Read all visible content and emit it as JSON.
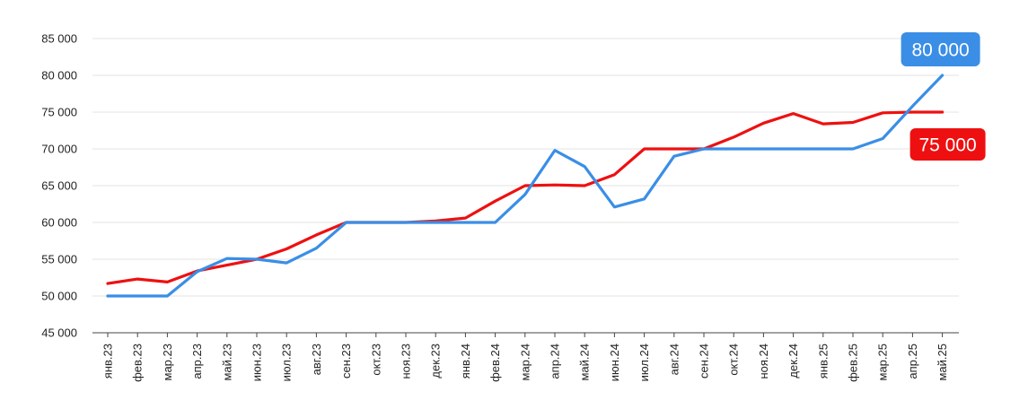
{
  "chart_data": {
    "type": "line",
    "title": "",
    "xlabel": "",
    "ylabel": "",
    "ylim": [
      45000,
      85000
    ],
    "yticks": [
      45000,
      50000,
      55000,
      60000,
      65000,
      70000,
      75000,
      80000,
      85000
    ],
    "ytick_labels": [
      "45 000",
      "50 000",
      "55 000",
      "60 000",
      "65 000",
      "70 000",
      "75 000",
      "80 000",
      "85 000"
    ],
    "grid": true,
    "legend": "none",
    "categories": [
      "янв.23",
      "фев.23",
      "мар.23",
      "апр.23",
      "май.23",
      "июн.23",
      "июл.23",
      "авг.23",
      "сен.23",
      "окт.23",
      "ноя.23",
      "дек.23",
      "янв.24",
      "фев.24",
      "мар.24",
      "апр.24",
      "май.24",
      "июн.24",
      "июл.24",
      "авг.24",
      "сен.24",
      "окт.24",
      "ноя.24",
      "дек.24",
      "янв.25",
      "фев.25",
      "мар.25",
      "апр.25",
      "май.25"
    ],
    "series": [
      {
        "color": "#ee1010",
        "values": [
          51700,
          52300,
          51900,
          53400,
          54200,
          55000,
          56400,
          58300,
          60000,
          60000,
          60000,
          60200,
          60600,
          62900,
          65000,
          65100,
          65000,
          66500,
          70000,
          70000,
          70000,
          71600,
          73500,
          74800,
          73400,
          73600,
          74900,
          75000,
          75000
        ],
        "end_label": "75 000"
      },
      {
        "color": "#3a8ee6",
        "values": [
          50000,
          50000,
          50000,
          53300,
          55100,
          55000,
          54500,
          56500,
          60000,
          60000,
          60000,
          60000,
          60000,
          60000,
          63800,
          69800,
          67600,
          62100,
          63200,
          69000,
          70000,
          70000,
          70000,
          70000,
          70000,
          70000,
          71400,
          75800,
          80000
        ],
        "end_label": "80 000"
      }
    ]
  }
}
